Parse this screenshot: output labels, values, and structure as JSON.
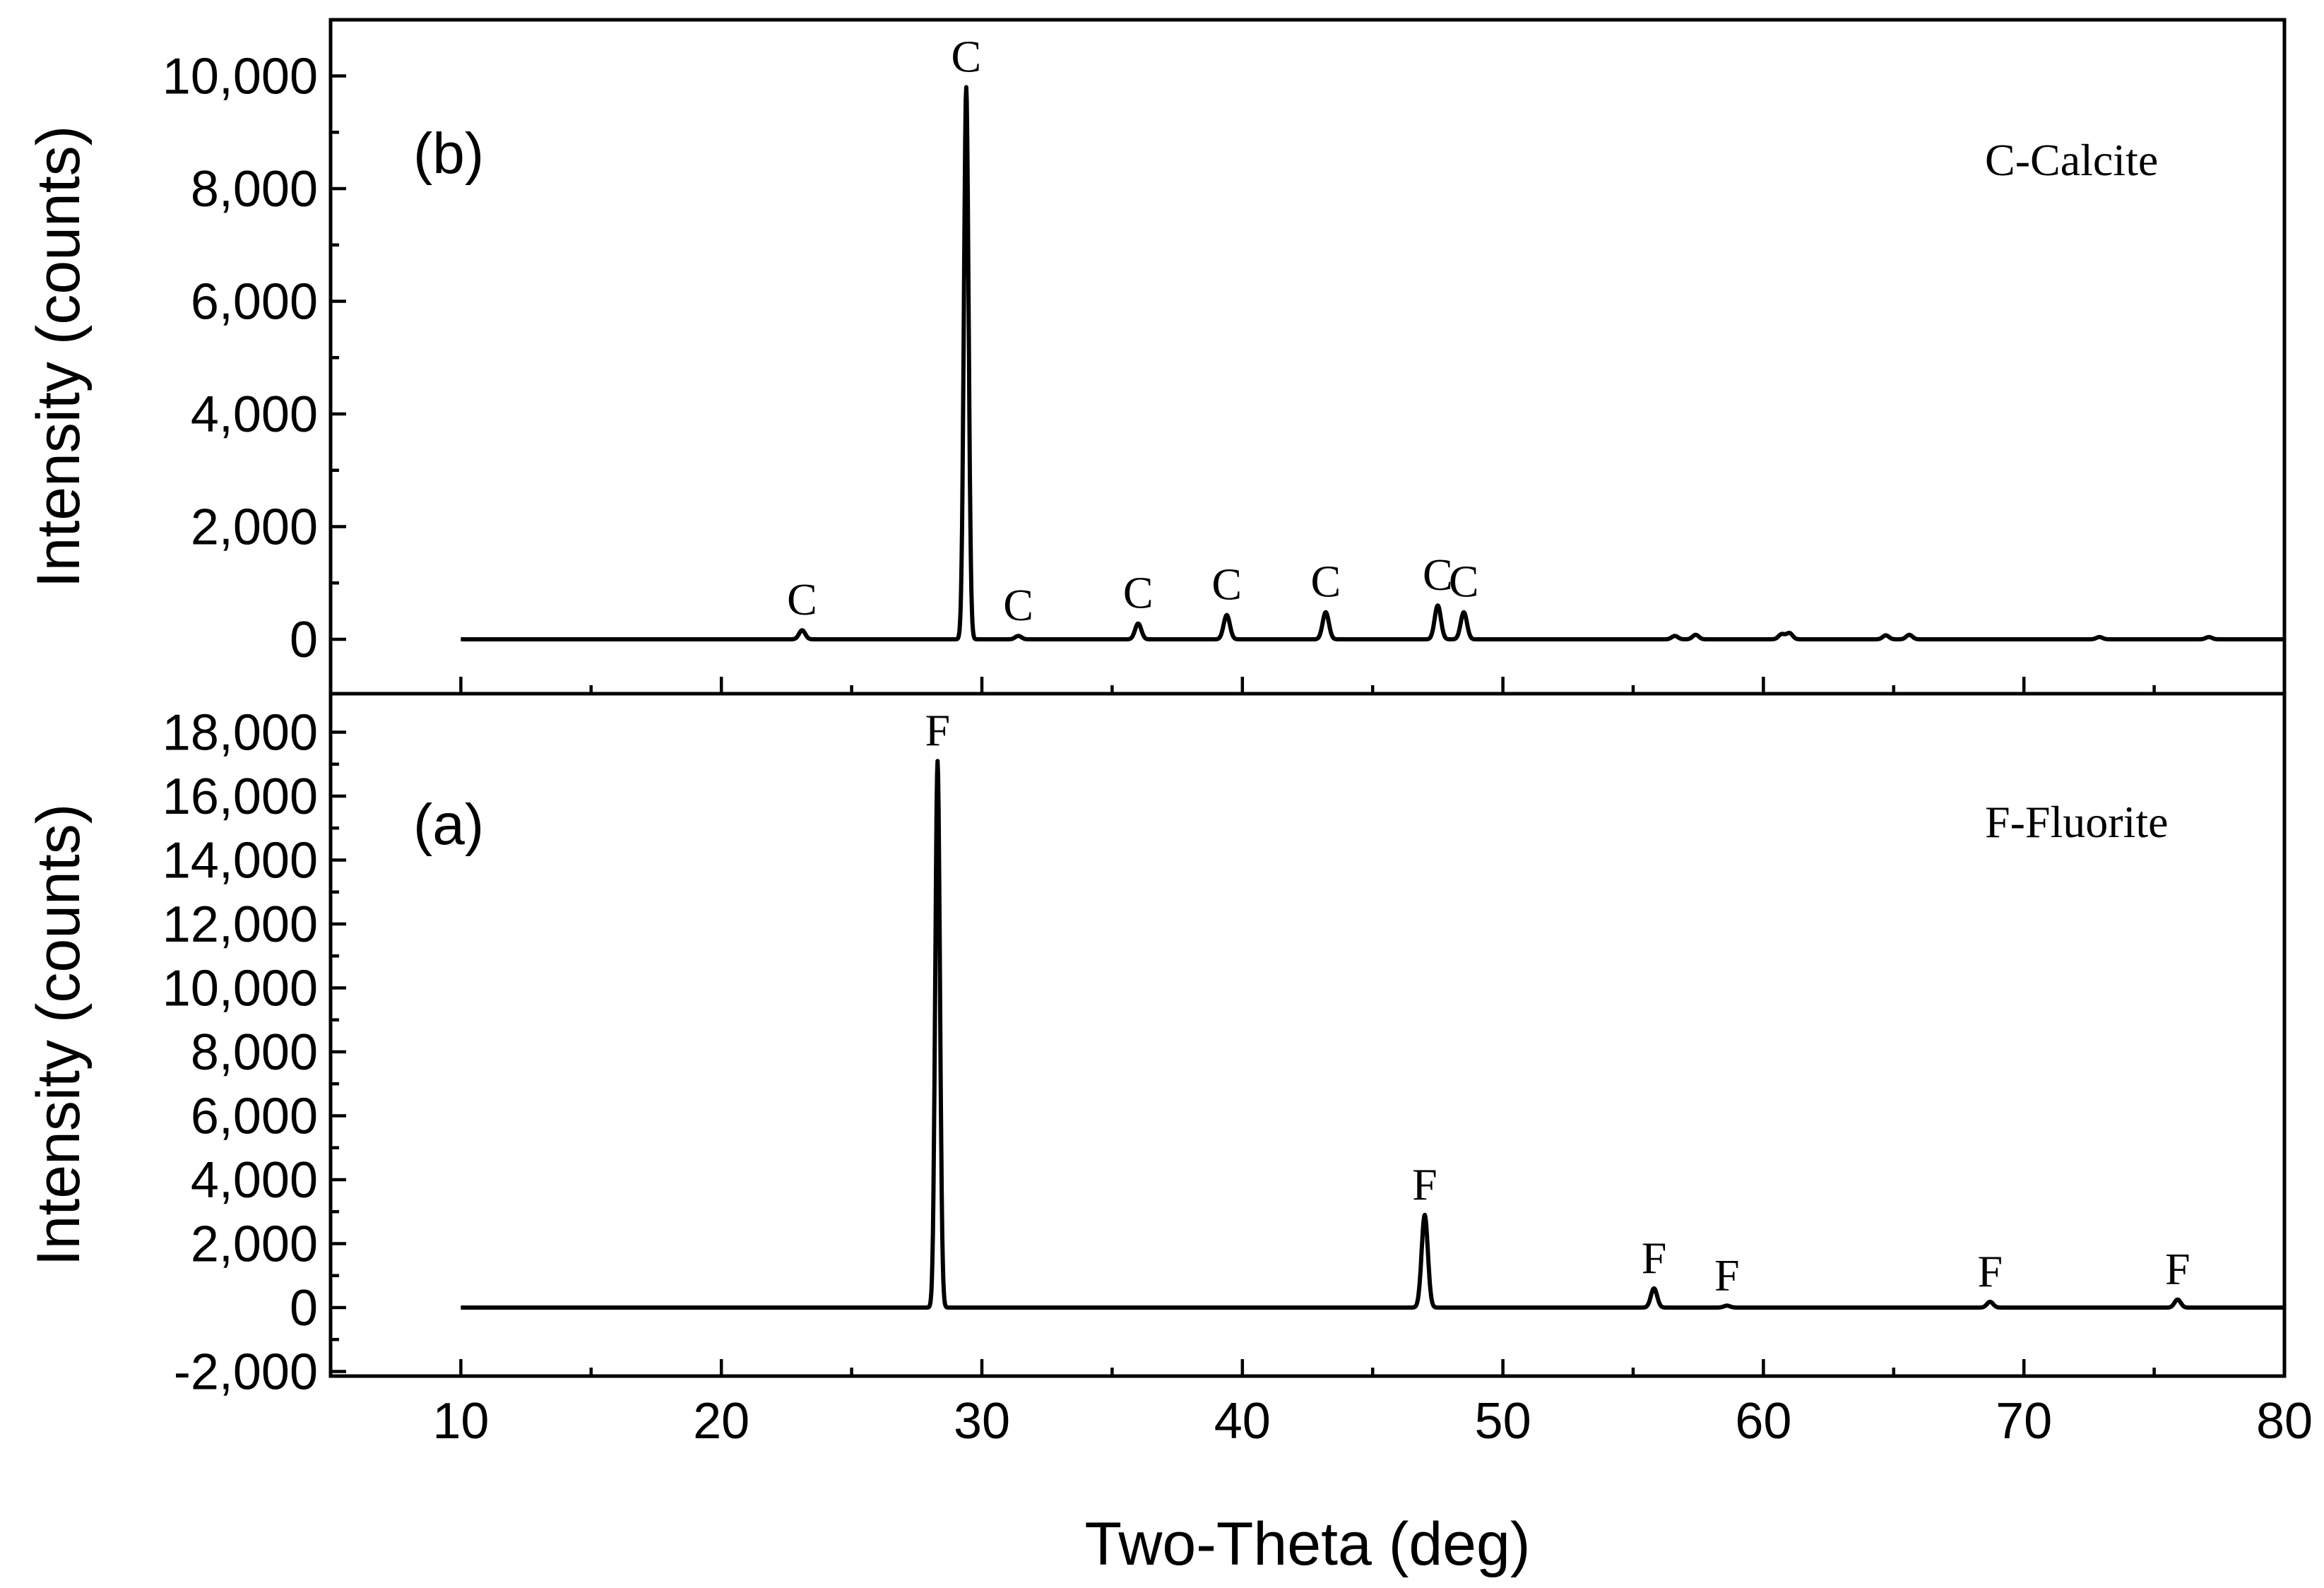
{
  "chart_data": [
    {
      "type": "line",
      "panel_label": "(b)",
      "legend_text": "C-Calcite",
      "xlabel": "",
      "ylabel": "Intensity (counts)",
      "xlim": [
        5,
        80
      ],
      "ylim": [
        -1000,
        11000
      ],
      "x_ticks": [
        10,
        20,
        30,
        40,
        50,
        60,
        70,
        80
      ],
      "y_ticks": [
        0,
        2000,
        4000,
        6000,
        8000,
        10000
      ],
      "y_tick_labels": [
        "0",
        "2,000",
        "4,000",
        "6,000",
        "8,000",
        "10,000"
      ],
      "baseline": 0,
      "x_range": [
        10,
        80
      ],
      "peaks": [
        {
          "x": 23.1,
          "y": 160,
          "label": "C"
        },
        {
          "x": 29.4,
          "y": 9800,
          "label": "C"
        },
        {
          "x": 31.4,
          "y": 60,
          "label": "C"
        },
        {
          "x": 36.0,
          "y": 280,
          "label": "C"
        },
        {
          "x": 39.4,
          "y": 430,
          "label": "C"
        },
        {
          "x": 43.2,
          "y": 480,
          "label": "C"
        },
        {
          "x": 47.5,
          "y": 600,
          "label": "C"
        },
        {
          "x": 48.5,
          "y": 480,
          "label": "C"
        },
        {
          "x": 56.6,
          "y": 60,
          "label": ""
        },
        {
          "x": 57.4,
          "y": 80,
          "label": ""
        },
        {
          "x": 60.7,
          "y": 90,
          "label": ""
        },
        {
          "x": 61.0,
          "y": 110,
          "label": ""
        },
        {
          "x": 64.7,
          "y": 70,
          "label": ""
        },
        {
          "x": 65.6,
          "y": 80,
          "label": ""
        },
        {
          "x": 72.9,
          "y": 40,
          "label": ""
        },
        {
          "x": 77.1,
          "y": 40,
          "label": ""
        }
      ]
    },
    {
      "type": "line",
      "panel_label": "(a)",
      "legend_text": "F-Fluorite",
      "xlabel": "Two-Theta (deg)",
      "ylabel": "Intensity (counts)",
      "xlim": [
        5,
        80
      ],
      "ylim": [
        -2000,
        19000
      ],
      "x_ticks": [
        10,
        20,
        30,
        40,
        50,
        60,
        70,
        80
      ],
      "x_tick_labels": [
        "10",
        "20",
        "30",
        "40",
        "50",
        "60",
        "70",
        "80"
      ],
      "y_ticks": [
        -2000,
        0,
        2000,
        4000,
        6000,
        8000,
        10000,
        12000,
        14000,
        16000,
        18000
      ],
      "y_tick_labels": [
        "-2,000",
        "0",
        "2,000",
        "4,000",
        "6,000",
        "8,000",
        "10,000",
        "12,000",
        "14,000",
        "16,000",
        "18,000"
      ],
      "baseline": 0,
      "x_range": [
        10,
        80
      ],
      "peaks": [
        {
          "x": 28.3,
          "y": 17100,
          "label": "F"
        },
        {
          "x": 47.0,
          "y": 2900,
          "label": "F"
        },
        {
          "x": 55.8,
          "y": 600,
          "label": "F"
        },
        {
          "x": 58.6,
          "y": 60,
          "label": "F"
        },
        {
          "x": 68.7,
          "y": 180,
          "label": "F"
        },
        {
          "x": 75.9,
          "y": 250,
          "label": "F"
        }
      ]
    }
  ]
}
